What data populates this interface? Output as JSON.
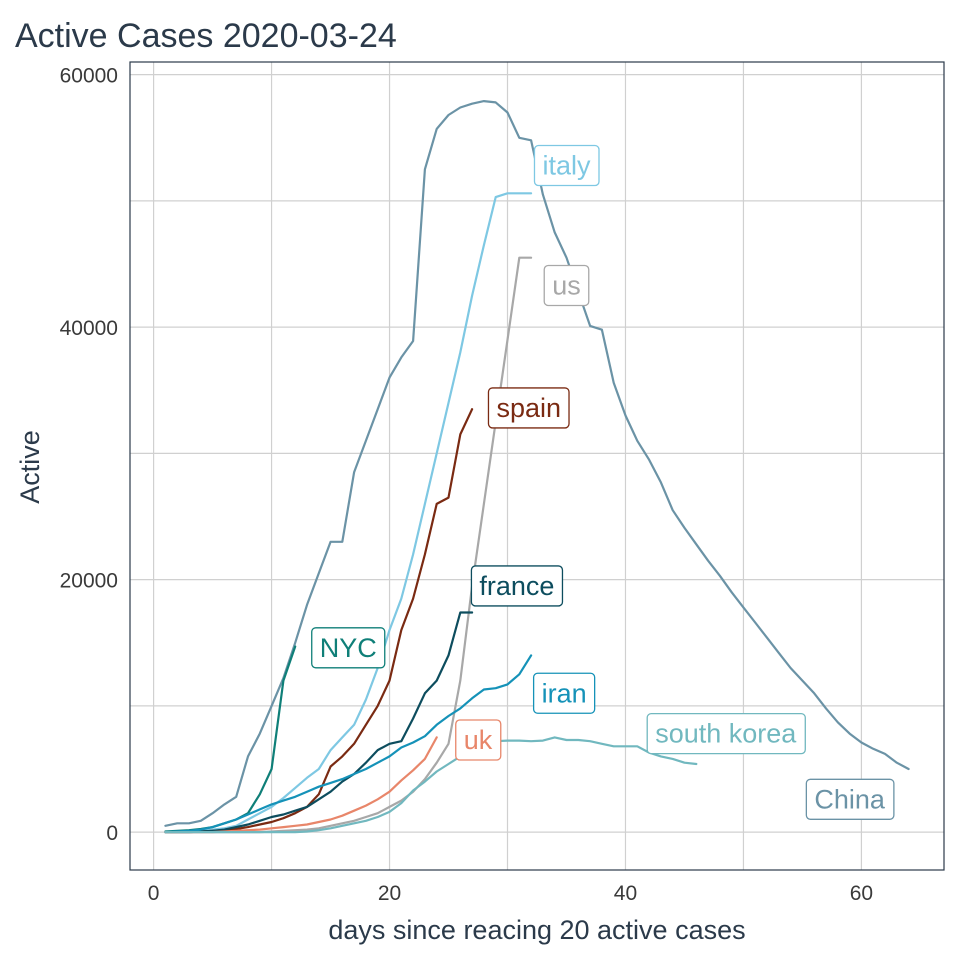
{
  "chart_data": {
    "type": "line",
    "title": "Active Cases 2020-03-24",
    "xlabel": "days since reacing 20 active cases",
    "ylabel": "Active",
    "xlim": [
      -2,
      67
    ],
    "ylim": [
      -3000,
      61000
    ],
    "x_ticks": [
      0,
      20,
      40,
      60
    ],
    "y_ticks": [
      0,
      20000,
      40000,
      60000
    ],
    "x_tick_labels": [
      "0",
      "20",
      "40",
      "60"
    ],
    "y_tick_labels": [
      "0",
      "20000",
      "40000",
      "60000"
    ],
    "grid": true,
    "legend": "none (direct labels)",
    "series": [
      {
        "name": "China",
        "color": "#6b93a6",
        "label_at": [
          59,
          2600
        ],
        "x": [
          1,
          2,
          3,
          4,
          5,
          6,
          7,
          8,
          9,
          10,
          11,
          12,
          13,
          14,
          15,
          16,
          17,
          18,
          19,
          20,
          21,
          22,
          23,
          24,
          25,
          26,
          27,
          28,
          29,
          30,
          31,
          32,
          33,
          34,
          35,
          36,
          37,
          38,
          39,
          40,
          41,
          42,
          43,
          44,
          45,
          46,
          47,
          48,
          49,
          50,
          51,
          52,
          53,
          54,
          55,
          56,
          57,
          58,
          59,
          60,
          61,
          62,
          63,
          64
        ],
        "y": [
          500,
          700,
          700,
          900,
          1500,
          2200,
          2800,
          6000,
          7800,
          10000,
          12200,
          15000,
          18000,
          20500,
          23000,
          23000,
          28500,
          31000,
          33500,
          36000,
          37600,
          38900,
          52500,
          55700,
          56800,
          57400,
          57700,
          57900,
          57800,
          57000,
          55000,
          54800,
          50500,
          47500,
          45500,
          42800,
          40100,
          39800,
          35600,
          33000,
          31000,
          29500,
          27700,
          25500,
          24100,
          22800,
          21500,
          20300,
          19000,
          17800,
          16600,
          15400,
          14200,
          13000,
          12000,
          11000,
          9800,
          8700,
          7800,
          7100,
          6600,
          6200,
          5500,
          5000
        ]
      },
      {
        "name": "italy",
        "color": "#7ec8e3",
        "label_at": [
          35,
          52800
        ],
        "x": [
          1,
          2,
          3,
          4,
          5,
          6,
          7,
          8,
          9,
          10,
          11,
          12,
          13,
          14,
          15,
          16,
          17,
          18,
          19,
          20,
          21,
          22,
          23,
          24,
          25,
          26,
          27,
          28,
          29,
          30,
          31,
          32
        ],
        "y": [
          0,
          0,
          100,
          150,
          200,
          300,
          500,
          1000,
          1500,
          2000,
          2700,
          3500,
          4300,
          5000,
          6500,
          7500,
          8500,
          10500,
          13000,
          16000,
          18500,
          22000,
          26000,
          30000,
          34000,
          38000,
          42500,
          46500,
          50300,
          50600,
          50600,
          50600
        ]
      },
      {
        "name": "us",
        "color": "#a8a8a8",
        "label_at": [
          35,
          43300
        ],
        "x": [
          1,
          2,
          3,
          4,
          5,
          6,
          7,
          8,
          9,
          10,
          11,
          12,
          13,
          14,
          15,
          16,
          17,
          18,
          19,
          20,
          21,
          22,
          23,
          24,
          25,
          26,
          27,
          28,
          29,
          30,
          31,
          32
        ],
        "y": [
          0,
          0,
          0,
          0,
          0,
          0,
          0,
          0,
          0,
          50,
          100,
          150,
          200,
          300,
          500,
          700,
          900,
          1200,
          1500,
          2000,
          2500,
          3200,
          4200,
          5500,
          7000,
          12000,
          19500,
          26000,
          32500,
          39000,
          45500,
          45500
        ]
      },
      {
        "name": "spain",
        "color": "#7a2a12",
        "label_at": [
          31.8,
          33600
        ],
        "x": [
          1,
          2,
          3,
          4,
          5,
          6,
          7,
          8,
          9,
          10,
          11,
          12,
          13,
          14,
          15,
          16,
          17,
          18,
          19,
          20,
          21,
          22,
          23,
          24,
          25,
          26,
          27
        ],
        "y": [
          0,
          0,
          0,
          50,
          100,
          150,
          250,
          400,
          600,
          800,
          1100,
          1500,
          2000,
          3000,
          5200,
          6000,
          7000,
          8500,
          10000,
          12000,
          16000,
          18500,
          22000,
          26000,
          26500,
          31500,
          33500
        ]
      },
      {
        "name": "france",
        "color": "#0d4d5e",
        "label_at": [
          30.8,
          19500
        ],
        "x": [
          1,
          2,
          3,
          4,
          5,
          6,
          7,
          8,
          9,
          10,
          11,
          12,
          13,
          14,
          15,
          16,
          17,
          18,
          19,
          20,
          21,
          22,
          23,
          24,
          25,
          26,
          27
        ],
        "y": [
          0,
          0,
          0,
          50,
          100,
          200,
          400,
          600,
          900,
          1200,
          1400,
          1700,
          2000,
          2600,
          3200,
          4000,
          4600,
          5500,
          6500,
          7000,
          7200,
          9000,
          11000,
          12000,
          14000,
          17400,
          17400
        ]
      },
      {
        "name": "NYC",
        "color": "#0f7f78",
        "label_at": [
          16.5,
          14600
        ],
        "x": [
          1,
          2,
          3,
          4,
          5,
          6,
          7,
          8,
          9,
          10,
          11,
          12
        ],
        "y": [
          50,
          100,
          150,
          250,
          400,
          700,
          1000,
          1500,
          3000,
          5000,
          12000,
          14700
        ]
      },
      {
        "name": "iran",
        "color": "#1592b8",
        "label_at": [
          34.8,
          11000
        ],
        "x": [
          1,
          2,
          3,
          4,
          5,
          6,
          7,
          8,
          9,
          10,
          11,
          12,
          13,
          14,
          15,
          16,
          17,
          18,
          19,
          20,
          21,
          22,
          23,
          24,
          25,
          26,
          27,
          28,
          29,
          30,
          31,
          32
        ],
        "y": [
          0,
          50,
          100,
          200,
          400,
          700,
          1000,
          1400,
          1800,
          2200,
          2500,
          2800,
          3200,
          3600,
          3900,
          4200,
          4600,
          5000,
          5500,
          6000,
          6700,
          7100,
          7600,
          8500,
          9200,
          9800,
          10600,
          11300,
          11400,
          11700,
          12500,
          14000
        ]
      },
      {
        "name": "uk",
        "color": "#e8866a",
        "label_at": [
          27.5,
          7300
        ],
        "x": [
          1,
          2,
          3,
          4,
          5,
          6,
          7,
          8,
          9,
          10,
          11,
          12,
          13,
          14,
          15,
          16,
          17,
          18,
          19,
          20,
          21,
          22,
          23,
          24
        ],
        "y": [
          0,
          0,
          0,
          0,
          0,
          50,
          100,
          150,
          200,
          300,
          400,
          500,
          600,
          800,
          1000,
          1300,
          1700,
          2100,
          2600,
          3200,
          4100,
          4900,
          5800,
          7500
        ]
      },
      {
        "name": "south korea",
        "color": "#71b8bf",
        "label_at": [
          48.5,
          7800
        ],
        "x": [
          1,
          2,
          3,
          4,
          5,
          6,
          7,
          8,
          9,
          10,
          11,
          12,
          13,
          14,
          15,
          16,
          17,
          18,
          19,
          20,
          21,
          22,
          23,
          24,
          25,
          26,
          27,
          28,
          29,
          30,
          31,
          32,
          33,
          34,
          35,
          36,
          37,
          38,
          39,
          40,
          41,
          42,
          43,
          44,
          45,
          46
        ],
        "y": [
          0,
          0,
          0,
          0,
          0,
          0,
          0,
          0,
          0,
          0,
          0,
          0,
          50,
          150,
          300,
          500,
          700,
          900,
          1200,
          1600,
          2300,
          3300,
          4000,
          4800,
          5400,
          6000,
          6400,
          6900,
          7200,
          7250,
          7250,
          7200,
          7250,
          7500,
          7300,
          7300,
          7200,
          7000,
          6800,
          6800,
          6800,
          6300,
          6000,
          5800,
          5500,
          5400
        ]
      }
    ]
  }
}
